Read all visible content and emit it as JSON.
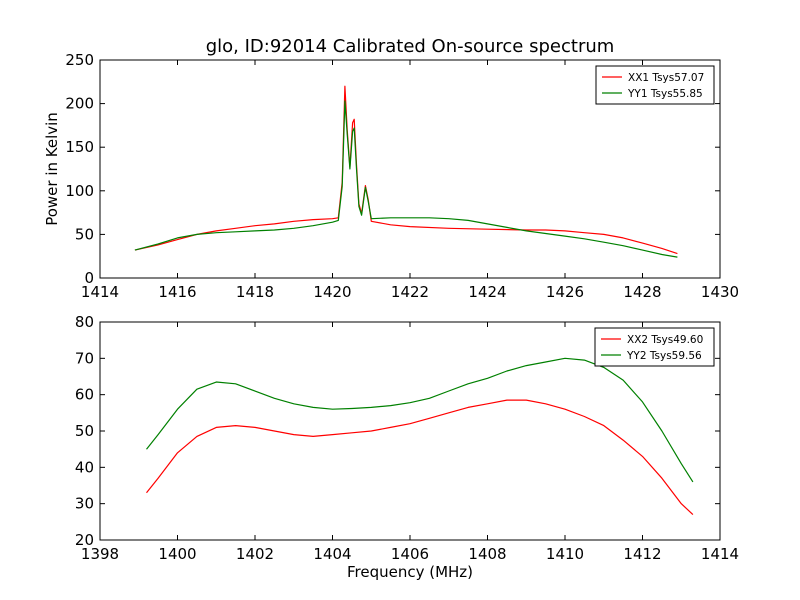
{
  "figure": {
    "title": "glo, ID:92014 Calibrated On-source spectrum",
    "ylabel": "Power in Kelvin",
    "xlabel": "Frequency (MHz)"
  },
  "chart_data": [
    {
      "type": "line",
      "xlim": [
        1414,
        1430
      ],
      "ylim": [
        0,
        250
      ],
      "xticks": [
        1414,
        1416,
        1418,
        1420,
        1422,
        1424,
        1426,
        1428,
        1430
      ],
      "yticks": [
        0,
        50,
        100,
        150,
        200,
        250
      ],
      "grid": false,
      "legend": "top-right",
      "series": [
        {
          "name": "XX1 Tsys57.07",
          "color": "#ff0000",
          "points": [
            [
              1414.9,
              32
            ],
            [
              1415.5,
              38
            ],
            [
              1416,
              44
            ],
            [
              1416.5,
              50
            ],
            [
              1417,
              54
            ],
            [
              1417.5,
              57
            ],
            [
              1418,
              60
            ],
            [
              1418.5,
              62
            ],
            [
              1419,
              65
            ],
            [
              1419.5,
              67
            ],
            [
              1420,
              68
            ],
            [
              1420.15,
              69
            ],
            [
              1420.25,
              110
            ],
            [
              1420.32,
              220
            ],
            [
              1420.38,
              170
            ],
            [
              1420.45,
              127
            ],
            [
              1420.52,
              178
            ],
            [
              1420.56,
              182
            ],
            [
              1420.62,
              130
            ],
            [
              1420.68,
              85
            ],
            [
              1420.75,
              74
            ],
            [
              1420.85,
              106
            ],
            [
              1420.92,
              90
            ],
            [
              1421,
              65
            ],
            [
              1421.5,
              61
            ],
            [
              1422,
              59
            ],
            [
              1423,
              57
            ],
            [
              1424,
              56
            ],
            [
              1425,
              55
            ],
            [
              1425.5,
              55
            ],
            [
              1426,
              54
            ],
            [
              1426.5,
              52
            ],
            [
              1427,
              50
            ],
            [
              1427.5,
              46
            ],
            [
              1428,
              40
            ],
            [
              1428.5,
              34
            ],
            [
              1428.9,
              28
            ]
          ]
        },
        {
          "name": "YY1 Tsys55.85",
          "color": "#008000",
          "points": [
            [
              1414.9,
              32
            ],
            [
              1415.5,
              39
            ],
            [
              1416,
              46
            ],
            [
              1416.5,
              50
            ],
            [
              1417,
              52
            ],
            [
              1417.5,
              53
            ],
            [
              1418,
              54
            ],
            [
              1418.5,
              55
            ],
            [
              1419,
              57
            ],
            [
              1419.5,
              60
            ],
            [
              1420,
              64
            ],
            [
              1420.15,
              66
            ],
            [
              1420.25,
              105
            ],
            [
              1420.32,
              203
            ],
            [
              1420.38,
              165
            ],
            [
              1420.45,
              125
            ],
            [
              1420.52,
              168
            ],
            [
              1420.56,
              172
            ],
            [
              1420.62,
              125
            ],
            [
              1420.68,
              82
            ],
            [
              1420.75,
              72
            ],
            [
              1420.85,
              104
            ],
            [
              1420.92,
              88
            ],
            [
              1421,
              68
            ],
            [
              1421.5,
              69
            ],
            [
              1422,
              69
            ],
            [
              1422.5,
              69
            ],
            [
              1423,
              68
            ],
            [
              1423.5,
              66
            ],
            [
              1424,
              62
            ],
            [
              1424.5,
              58
            ],
            [
              1425,
              54
            ],
            [
              1425.5,
              51
            ],
            [
              1426,
              48
            ],
            [
              1426.5,
              45
            ],
            [
              1427,
              41
            ],
            [
              1427.5,
              37
            ],
            [
              1428,
              32
            ],
            [
              1428.5,
              27
            ],
            [
              1428.9,
              24
            ]
          ]
        }
      ]
    },
    {
      "type": "line",
      "xlim": [
        1398,
        1414
      ],
      "ylim": [
        20,
        80
      ],
      "xticks": [
        1398,
        1400,
        1402,
        1404,
        1406,
        1408,
        1410,
        1412,
        1414
      ],
      "yticks": [
        20,
        30,
        40,
        50,
        60,
        70,
        80
      ],
      "grid": false,
      "legend": "top-right",
      "series": [
        {
          "name": "XX2 Tsys49.60",
          "color": "#ff0000",
          "points": [
            [
              1399.2,
              33
            ],
            [
              1399.5,
              37
            ],
            [
              1400,
              44
            ],
            [
              1400.5,
              48.5
            ],
            [
              1401,
              51
            ],
            [
              1401.5,
              51.5
            ],
            [
              1402,
              51
            ],
            [
              1402.5,
              50
            ],
            [
              1403,
              49
            ],
            [
              1403.5,
              48.5
            ],
            [
              1404,
              49
            ],
            [
              1404.5,
              49.5
            ],
            [
              1405,
              50
            ],
            [
              1405.5,
              51
            ],
            [
              1406,
              52
            ],
            [
              1406.5,
              53.5
            ],
            [
              1407,
              55
            ],
            [
              1407.5,
              56.5
            ],
            [
              1408,
              57.5
            ],
            [
              1408.5,
              58.5
            ],
            [
              1409,
              58.5
            ],
            [
              1409.5,
              57.5
            ],
            [
              1410,
              56
            ],
            [
              1410.5,
              54
            ],
            [
              1411,
              51.5
            ],
            [
              1411.5,
              47.5
            ],
            [
              1412,
              43
            ],
            [
              1412.5,
              37
            ],
            [
              1413,
              30
            ],
            [
              1413.3,
              27
            ]
          ]
        },
        {
          "name": "YY2 Tsys59.56",
          "color": "#008000",
          "points": [
            [
              1399.2,
              45
            ],
            [
              1399.5,
              49
            ],
            [
              1400,
              56
            ],
            [
              1400.5,
              61.5
            ],
            [
              1401,
              63.5
            ],
            [
              1401.5,
              63
            ],
            [
              1402,
              61
            ],
            [
              1402.5,
              59
            ],
            [
              1403,
              57.5
            ],
            [
              1403.5,
              56.5
            ],
            [
              1404,
              56
            ],
            [
              1404.5,
              56.2
            ],
            [
              1405,
              56.5
            ],
            [
              1405.5,
              57
            ],
            [
              1406,
              57.8
            ],
            [
              1406.5,
              59
            ],
            [
              1407,
              61
            ],
            [
              1407.5,
              63
            ],
            [
              1408,
              64.5
            ],
            [
              1408.5,
              66.5
            ],
            [
              1409,
              68
            ],
            [
              1409.5,
              69
            ],
            [
              1410,
              70
            ],
            [
              1410.5,
              69.5
            ],
            [
              1411,
              67.5
            ],
            [
              1411.5,
              64
            ],
            [
              1412,
              58
            ],
            [
              1412.5,
              50
            ],
            [
              1413,
              41
            ],
            [
              1413.3,
              36
            ]
          ]
        }
      ]
    }
  ]
}
